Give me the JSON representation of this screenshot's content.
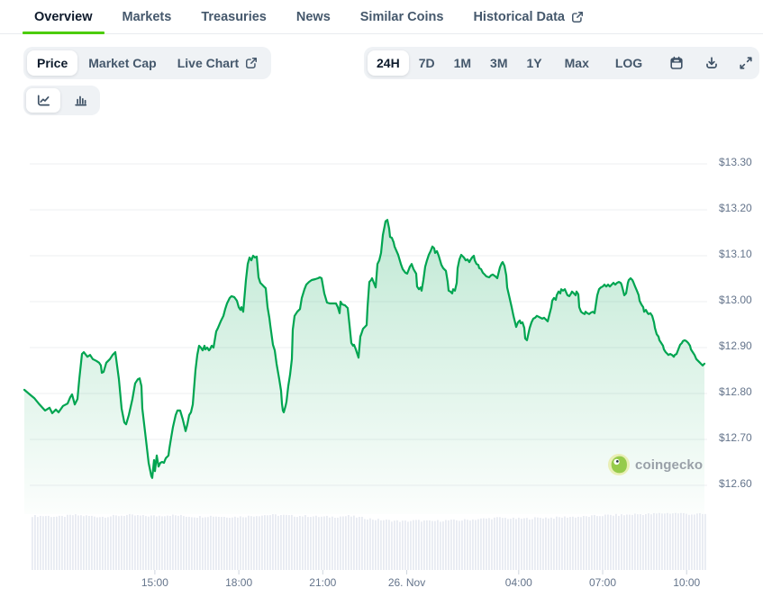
{
  "tabs": {
    "items": [
      {
        "label": "Overview",
        "active": true,
        "external": false
      },
      {
        "label": "Markets",
        "active": false,
        "external": false
      },
      {
        "label": "Treasuries",
        "active": false,
        "external": false
      },
      {
        "label": "News",
        "active": false,
        "external": false
      },
      {
        "label": "Similar Coins",
        "active": false,
        "external": false
      },
      {
        "label": "Historical Data",
        "active": false,
        "external": true
      }
    ]
  },
  "metric_toggle": {
    "items": [
      {
        "label": "Price",
        "active": true,
        "external": false
      },
      {
        "label": "Market Cap",
        "active": false,
        "external": false
      },
      {
        "label": "Live Chart",
        "active": false,
        "external": true
      }
    ]
  },
  "range_toolbar": {
    "ranges": [
      {
        "label": "24H",
        "active": true
      },
      {
        "label": "7D",
        "active": false
      },
      {
        "label": "1M",
        "active": false
      },
      {
        "label": "3M",
        "active": false
      },
      {
        "label": "1Y",
        "active": false
      },
      {
        "label": "Max",
        "active": false
      },
      {
        "label": "LOG",
        "active": false
      }
    ],
    "icons": [
      "calendar-icon",
      "download-icon",
      "fullscreen-icon"
    ]
  },
  "chart_type_toggle": {
    "items": [
      {
        "icon": "line-chart-icon",
        "active": true
      },
      {
        "icon": "bar-chart-icon",
        "active": false
      }
    ]
  },
  "watermark": {
    "text": "coingecko"
  },
  "colors": {
    "accent_green": "#4BCC00",
    "line_green": "#00a551",
    "volume_bar": "#e8ebf2",
    "gridline": "#edeff2",
    "axis_label": "#64748b"
  },
  "chart_data": {
    "type": "area",
    "title": "",
    "ylabel": "",
    "xlabel": "",
    "legend": false,
    "grid": true,
    "y_axis": {
      "tick_labels": [
        "$13.30",
        "$13.20",
        "$13.10",
        "$13.00",
        "$12.90",
        "$12.80",
        "$12.70",
        "$12.60"
      ],
      "tick_values": [
        13.3,
        13.2,
        13.1,
        13.0,
        12.9,
        12.8,
        12.7,
        12.6
      ]
    },
    "x_axis": {
      "tick_labels": [
        "15:00",
        "18:00",
        "21:00",
        "26. Nov",
        "04:00",
        "07:00",
        "10:00"
      ],
      "tick_hours": [
        15,
        18,
        21,
        24,
        28,
        31,
        34
      ]
    },
    "price_points_x_price": [
      [
        27,
        12.808
      ],
      [
        33,
        12.798
      ],
      [
        38,
        12.79
      ],
      [
        43,
        12.778
      ],
      [
        50,
        12.763
      ],
      [
        55,
        12.769
      ],
      [
        58,
        12.757
      ],
      [
        62,
        12.765
      ],
      [
        65,
        12.759
      ],
      [
        70,
        12.773
      ],
      [
        75,
        12.778
      ],
      [
        78,
        12.792
      ],
      [
        80,
        12.798
      ],
      [
        83,
        12.776
      ],
      [
        86,
        12.788
      ],
      [
        88,
        12.831
      ],
      [
        91,
        12.886
      ],
      [
        93,
        12.89
      ],
      [
        97,
        12.88
      ],
      [
        100,
        12.884
      ],
      [
        103,
        12.875
      ],
      [
        107,
        12.871
      ],
      [
        110,
        12.867
      ],
      [
        112,
        12.861
      ],
      [
        113,
        12.845
      ],
      [
        115,
        12.847
      ],
      [
        118,
        12.867
      ],
      [
        122,
        12.875
      ],
      [
        125,
        12.884
      ],
      [
        128,
        12.89
      ],
      [
        132,
        12.831
      ],
      [
        135,
        12.767
      ],
      [
        138,
        12.737
      ],
      [
        140,
        12.733
      ],
      [
        143,
        12.753
      ],
      [
        147,
        12.788
      ],
      [
        150,
        12.822
      ],
      [
        153,
        12.831
      ],
      [
        155,
        12.833
      ],
      [
        157,
        12.816
      ],
      [
        158,
        12.767
      ],
      [
        162,
        12.7
      ],
      [
        165,
        12.649
      ],
      [
        168,
        12.62
      ],
      [
        169,
        12.616
      ],
      [
        171,
        12.655
      ],
      [
        172,
        12.631
      ],
      [
        174,
        12.665
      ],
      [
        176,
        12.641
      ],
      [
        178,
        12.649
      ],
      [
        180,
        12.651
      ],
      [
        182,
        12.649
      ],
      [
        184,
        12.659
      ],
      [
        187,
        12.665
      ],
      [
        188,
        12.68
      ],
      [
        190,
        12.704
      ],
      [
        192,
        12.727
      ],
      [
        195,
        12.753
      ],
      [
        197,
        12.763
      ],
      [
        200,
        12.763
      ],
      [
        203,
        12.743
      ],
      [
        206,
        12.718
      ],
      [
        208,
        12.733
      ],
      [
        210,
        12.753
      ],
      [
        212,
        12.759
      ],
      [
        214,
        12.776
      ],
      [
        217,
        12.851
      ],
      [
        219,
        12.884
      ],
      [
        221,
        12.904
      ],
      [
        223,
        12.9
      ],
      [
        225,
        12.894
      ],
      [
        227,
        12.904
      ],
      [
        228,
        12.896
      ],
      [
        230,
        12.9
      ],
      [
        232,
        12.894
      ],
      [
        233,
        12.896
      ],
      [
        235,
        12.904
      ],
      [
        237,
        12.9
      ],
      [
        240,
        12.935
      ],
      [
        242,
        12.943
      ],
      [
        245,
        12.957
      ],
      [
        248,
        12.969
      ],
      [
        250,
        12.984
      ],
      [
        252,
        12.996
      ],
      [
        255,
        13.008
      ],
      [
        257,
        13.012
      ],
      [
        260,
        13.01
      ],
      [
        263,
        13.002
      ],
      [
        265,
        12.988
      ],
      [
        267,
        12.982
      ],
      [
        268,
        12.988
      ],
      [
        270,
        12.978
      ],
      [
        273,
        13.047
      ],
      [
        275,
        13.082
      ],
      [
        277,
        13.096
      ],
      [
        279,
        13.09
      ],
      [
        281,
        13.1
      ],
      [
        283,
        13.096
      ],
      [
        285,
        13.098
      ],
      [
        287,
        13.053
      ],
      [
        289,
        13.041
      ],
      [
        291,
        13.037
      ],
      [
        293,
        13.033
      ],
      [
        295,
        13.029
      ],
      [
        297,
        12.988
      ],
      [
        299,
        12.965
      ],
      [
        300,
        12.949
      ],
      [
        303,
        12.906
      ],
      [
        305,
        12.894
      ],
      [
        307,
        12.865
      ],
      [
        310,
        12.831
      ],
      [
        312,
        12.806
      ],
      [
        313,
        12.778
      ],
      [
        314,
        12.763
      ],
      [
        315,
        12.759
      ],
      [
        317,
        12.773
      ],
      [
        318,
        12.782
      ],
      [
        320,
        12.816
      ],
      [
        322,
        12.841
      ],
      [
        324,
        12.875
      ],
      [
        325,
        12.939
      ],
      [
        327,
        12.969
      ],
      [
        330,
        12.978
      ],
      [
        333,
        12.984
      ],
      [
        335,
        13.008
      ],
      [
        338,
        13.027
      ],
      [
        340,
        13.037
      ],
      [
        343,
        13.043
      ],
      [
        346,
        13.047
      ],
      [
        350,
        13.049
      ],
      [
        353,
        13.051
      ],
      [
        355,
        13.053
      ],
      [
        357,
        13.051
      ],
      [
        360,
        13.018
      ],
      [
        363,
        12.998
      ],
      [
        366,
        12.996
      ],
      [
        370,
        12.996
      ],
      [
        373,
        12.996
      ],
      [
        375,
        12.988
      ],
      [
        377,
        12.975
      ],
      [
        378,
        13.0
      ],
      [
        380,
        12.994
      ],
      [
        383,
        12.992
      ],
      [
        386,
        12.986
      ],
      [
        388,
        12.949
      ],
      [
        390,
        12.91
      ],
      [
        392,
        12.904
      ],
      [
        393,
        12.906
      ],
      [
        395,
        12.896
      ],
      [
        397,
        12.884
      ],
      [
        398,
        12.878
      ],
      [
        400,
        12.924
      ],
      [
        401,
        12.929
      ],
      [
        403,
        12.941
      ],
      [
        405,
        12.945
      ],
      [
        407,
        12.949
      ],
      [
        408,
        12.988
      ],
      [
        410,
        13.043
      ],
      [
        412,
        13.047
      ],
      [
        413,
        13.051
      ],
      [
        415,
        13.041
      ],
      [
        417,
        13.031
      ],
      [
        419,
        13.082
      ],
      [
        421,
        13.09
      ],
      [
        423,
        13.106
      ],
      [
        425,
        13.145
      ],
      [
        427,
        13.165
      ],
      [
        428,
        13.175
      ],
      [
        430,
        13.178
      ],
      [
        432,
        13.159
      ],
      [
        433,
        13.141
      ],
      [
        435,
        13.139
      ],
      [
        437,
        13.129
      ],
      [
        438,
        13.12
      ],
      [
        442,
        13.102
      ],
      [
        445,
        13.082
      ],
      [
        447,
        13.071
      ],
      [
        450,
        13.063
      ],
      [
        452,
        13.061
      ],
      [
        455,
        13.076
      ],
      [
        457,
        13.082
      ],
      [
        459,
        13.071
      ],
      [
        462,
        13.061
      ],
      [
        463,
        13.033
      ],
      [
        465,
        13.027
      ],
      [
        467,
        13.031
      ],
      [
        468,
        13.024
      ],
      [
        470,
        13.047
      ],
      [
        472,
        13.076
      ],
      [
        474,
        13.09
      ],
      [
        476,
        13.102
      ],
      [
        478,
        13.11
      ],
      [
        480,
        13.12
      ],
      [
        482,
        13.116
      ],
      [
        483,
        13.106
      ],
      [
        485,
        13.11
      ],
      [
        487,
        13.1
      ],
      [
        490,
        13.08
      ],
      [
        492,
        13.073
      ],
      [
        494,
        13.069
      ],
      [
        495,
        13.067
      ],
      [
        497,
        13.043
      ],
      [
        498,
        13.024
      ],
      [
        500,
        13.022
      ],
      [
        502,
        13.018
      ],
      [
        503,
        13.027
      ],
      [
        505,
        13.024
      ],
      [
        507,
        13.041
      ],
      [
        508,
        13.073
      ],
      [
        510,
        13.092
      ],
      [
        512,
        13.102
      ],
      [
        513,
        13.1
      ],
      [
        515,
        13.096
      ],
      [
        517,
        13.09
      ],
      [
        519,
        13.092
      ],
      [
        521,
        13.086
      ],
      [
        522,
        13.09
      ],
      [
        524,
        13.096
      ],
      [
        526,
        13.1
      ],
      [
        527,
        13.09
      ],
      [
        529,
        13.082
      ],
      [
        531,
        13.08
      ],
      [
        532,
        13.073
      ],
      [
        534,
        13.071
      ],
      [
        536,
        13.063
      ],
      [
        538,
        13.059
      ],
      [
        540,
        13.055
      ],
      [
        543,
        13.053
      ],
      [
        545,
        13.057
      ],
      [
        547,
        13.059
      ],
      [
        550,
        13.055
      ],
      [
        552,
        13.051
      ],
      [
        555,
        13.075
      ],
      [
        557,
        13.084
      ],
      [
        558,
        13.086
      ],
      [
        560,
        13.078
      ],
      [
        562,
        13.057
      ],
      [
        563,
        13.031
      ],
      [
        565,
        13.014
      ],
      [
        568,
        12.988
      ],
      [
        570,
        12.969
      ],
      [
        572,
        12.953
      ],
      [
        573,
        12.945
      ],
      [
        575,
        12.955
      ],
      [
        577,
        12.959
      ],
      [
        578,
        12.953
      ],
      [
        580,
        12.955
      ],
      [
        582,
        12.943
      ],
      [
        583,
        12.92
      ],
      [
        585,
        12.916
      ],
      [
        588,
        12.943
      ],
      [
        590,
        12.955
      ],
      [
        592,
        12.963
      ],
      [
        594,
        12.965
      ],
      [
        596,
        12.969
      ],
      [
        598,
        12.967
      ],
      [
        600,
        12.965
      ],
      [
        602,
        12.963
      ],
      [
        604,
        12.965
      ],
      [
        606,
        12.961
      ],
      [
        608,
        12.957
      ],
      [
        610,
        12.973
      ],
      [
        612,
        12.988
      ],
      [
        613,
        13.002
      ],
      [
        615,
        13.008
      ],
      [
        617,
        13.004
      ],
      [
        618,
        13.014
      ],
      [
        620,
        13.022
      ],
      [
        622,
        13.018
      ],
      [
        623,
        13.027
      ],
      [
        625,
        13.024
      ],
      [
        627,
        13.027
      ],
      [
        629,
        13.018
      ],
      [
        630,
        13.014
      ],
      [
        632,
        13.012
      ],
      [
        634,
        13.018
      ],
      [
        635,
        13.022
      ],
      [
        637,
        13.018
      ],
      [
        639,
        13.014
      ],
      [
        640,
        13.022
      ],
      [
        642,
        13.016
      ],
      [
        643,
        12.988
      ],
      [
        645,
        12.978
      ],
      [
        647,
        12.975
      ],
      [
        649,
        12.973
      ],
      [
        650,
        12.978
      ],
      [
        652,
        12.975
      ],
      [
        654,
        12.973
      ],
      [
        656,
        12.976
      ],
      [
        658,
        12.978
      ],
      [
        660,
        12.975
      ],
      [
        663,
        13.014
      ],
      [
        665,
        13.027
      ],
      [
        667,
        13.031
      ],
      [
        669,
        13.033
      ],
      [
        671,
        13.037
      ],
      [
        673,
        13.033
      ],
      [
        675,
        13.037
      ],
      [
        677,
        13.033
      ],
      [
        679,
        13.037
      ],
      [
        681,
        13.041
      ],
      [
        683,
        13.037
      ],
      [
        685,
        13.041
      ],
      [
        687,
        13.043
      ],
      [
        689,
        13.041
      ],
      [
        690,
        13.037
      ],
      [
        692,
        13.022
      ],
      [
        693,
        13.014
      ],
      [
        695,
        13.018
      ],
      [
        697,
        13.041
      ],
      [
        698,
        13.047
      ],
      [
        700,
        13.051
      ],
      [
        702,
        13.047
      ],
      [
        703,
        13.043
      ],
      [
        705,
        13.033
      ],
      [
        707,
        13.024
      ],
      [
        709,
        13.014
      ],
      [
        710,
        13.002
      ],
      [
        712,
        12.994
      ],
      [
        714,
        12.988
      ],
      [
        715,
        12.978
      ],
      [
        717,
        12.982
      ],
      [
        719,
        12.975
      ],
      [
        720,
        12.973
      ],
      [
        722,
        12.975
      ],
      [
        724,
        12.969
      ],
      [
        726,
        12.955
      ],
      [
        727,
        12.943
      ],
      [
        729,
        12.929
      ],
      [
        731,
        12.924
      ],
      [
        732,
        12.916
      ],
      [
        734,
        12.91
      ],
      [
        736,
        12.904
      ],
      [
        737,
        12.896
      ],
      [
        739,
        12.89
      ],
      [
        741,
        12.886
      ],
      [
        742,
        12.884
      ],
      [
        744,
        12.886
      ],
      [
        746,
        12.884
      ],
      [
        748,
        12.88
      ],
      [
        749,
        12.884
      ],
      [
        751,
        12.886
      ],
      [
        753,
        12.896
      ],
      [
        755,
        12.906
      ],
      [
        757,
        12.91
      ],
      [
        758,
        12.914
      ],
      [
        760,
        12.916
      ],
      [
        762,
        12.914
      ],
      [
        764,
        12.91
      ],
      [
        766,
        12.904
      ],
      [
        767,
        12.896
      ],
      [
        769,
        12.89
      ],
      [
        771,
        12.884
      ],
      [
        773,
        12.875
      ],
      [
        775,
        12.871
      ],
      [
        777,
        12.867
      ],
      [
        778,
        12.865
      ],
      [
        780,
        12.861
      ],
      [
        782,
        12.865
      ]
    ],
    "volume_profile": [
      60,
      60,
      59,
      61,
      60,
      59,
      60,
      61,
      60,
      60,
      61,
      60,
      59,
      60,
      59,
      59,
      60,
      61,
      61,
      60,
      60,
      59,
      59,
      60,
      58,
      56,
      55,
      54,
      55,
      54,
      55,
      55,
      56,
      57,
      58,
      57,
      57,
      58,
      58,
      59,
      59,
      60,
      61,
      61,
      62,
      62,
      63,
      63,
      62,
      62
    ]
  }
}
